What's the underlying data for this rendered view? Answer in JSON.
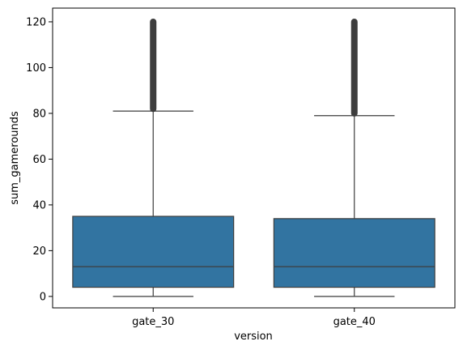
{
  "chart_data": {
    "type": "box",
    "title": "",
    "xlabel": "version",
    "ylabel": "sum_gamerounds",
    "ylim": [
      -5,
      126
    ],
    "yticks": [
      0,
      20,
      40,
      60,
      80,
      100,
      120
    ],
    "grid": false,
    "categories": [
      "gate_30",
      "gate_40"
    ],
    "boxes": [
      {
        "category": "gate_30",
        "min": 0,
        "q1": 4,
        "median": 13,
        "q3": 35,
        "whisker_high": 81,
        "outliers_from": 82,
        "outliers_to": 120
      },
      {
        "category": "gate_40",
        "min": 0,
        "q1": 4,
        "median": 13,
        "q3": 34,
        "whisker_high": 79,
        "outliers_from": 80,
        "outliers_to": 120
      }
    ],
    "colors": {
      "box_fill": "#3274a1",
      "line": "#3d3d3d"
    }
  }
}
